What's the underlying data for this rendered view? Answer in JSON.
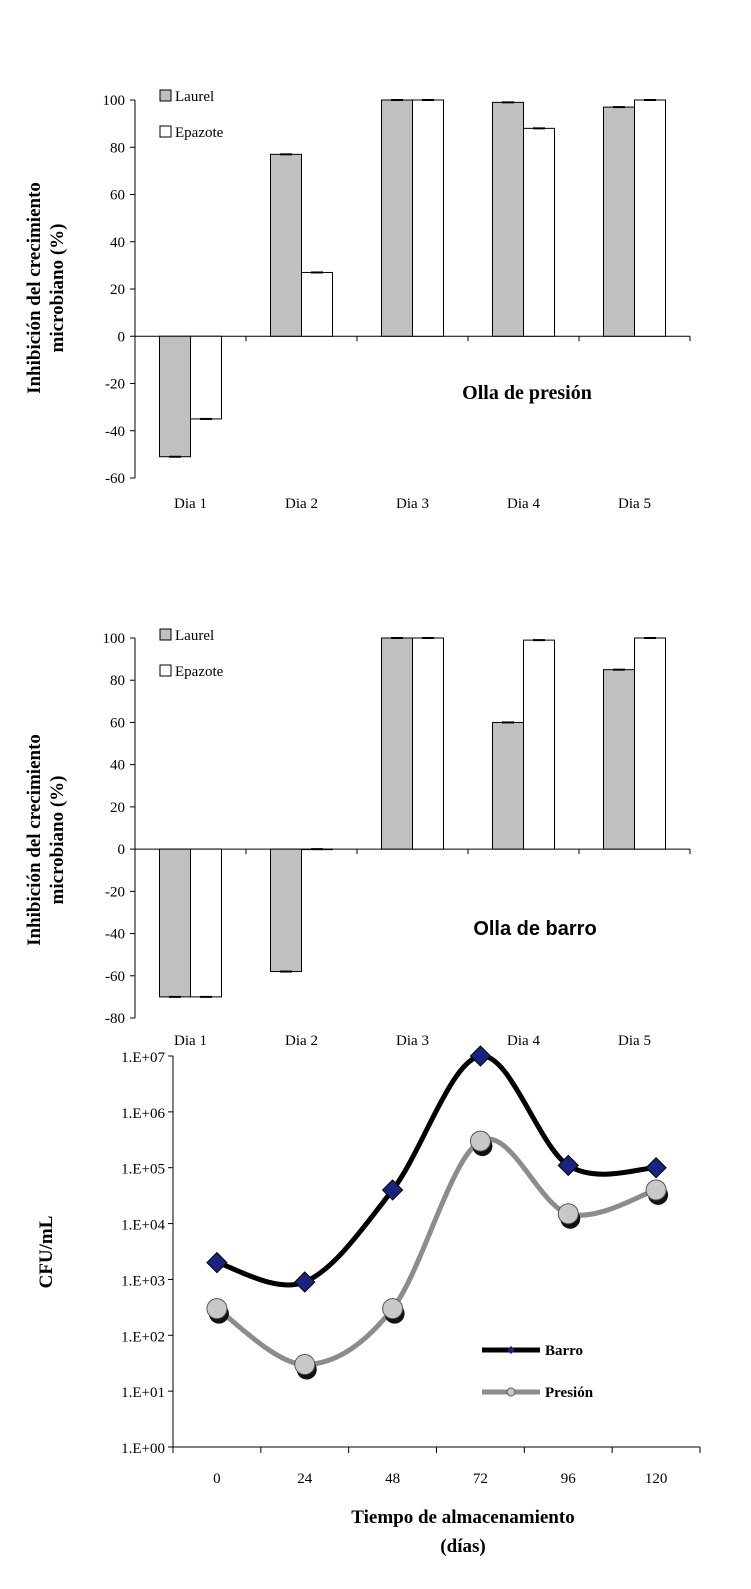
{
  "chart_data": [
    {
      "type": "bar",
      "title": "",
      "annotation": "Olla de presión",
      "ylabel": "Inhibición del crecimiento microbiano (%)",
      "ylabel_lines": [
        "Inhibición del crecimiento",
        "microbiano (%)"
      ],
      "xlabel": "",
      "categories": [
        "Dia 1",
        "Dia 2",
        "Dia 3",
        "Dia 4",
        "Dia 5"
      ],
      "ylim": [
        -60,
        100
      ],
      "yticks": [
        -60,
        -40,
        -20,
        0,
        20,
        40,
        60,
        80,
        100
      ],
      "legend_position": "top-left",
      "series": [
        {
          "name": "Laurel",
          "color": "#c0c0c0",
          "values": [
            -51,
            77,
            100,
            99,
            97
          ]
        },
        {
          "name": "Epazote",
          "color": "#ffffff",
          "values": [
            -35,
            27,
            100,
            88,
            100
          ]
        }
      ]
    },
    {
      "type": "bar",
      "title": "",
      "annotation": "Olla de barro",
      "ylabel": "Inhibición del crecimiento microbiano (%)",
      "ylabel_lines": [
        "Inhibición del crecimiento",
        "microbiano (%)"
      ],
      "xlabel": "",
      "categories": [
        "Dia 1",
        "Dia 2",
        "Dia 3",
        "Dia 4",
        "Dia 5"
      ],
      "ylim": [
        -80,
        100
      ],
      "yticks": [
        -80,
        -60,
        -40,
        -20,
        0,
        20,
        40,
        60,
        80,
        100
      ],
      "legend_position": "top-left",
      "series": [
        {
          "name": "Laurel",
          "color": "#c0c0c0",
          "values": [
            -70,
            -58,
            100,
            60,
            85
          ]
        },
        {
          "name": "Epazote",
          "color": "#ffffff",
          "values": [
            -70,
            0,
            100,
            99,
            100
          ]
        }
      ]
    },
    {
      "type": "line",
      "title": "",
      "ylabel": "CFU/mL",
      "xlabel": "Tiempo de almacenamiento",
      "xlabel_line2": "(días)",
      "x": [
        0,
        24,
        48,
        72,
        96,
        120
      ],
      "xticks": [
        "0",
        "24",
        "48",
        "72",
        "96",
        "120"
      ],
      "y_scale": "log",
      "ylim": [
        1,
        10000000
      ],
      "yticks": [
        "1.E+00",
        "1.E+01",
        "1.E+02",
        "1.E+03",
        "1.E+04",
        "1.E+05",
        "1.E+06",
        "1.E+07"
      ],
      "legend_position": "center-right",
      "series": [
        {
          "name": "Barro",
          "color": "#000000",
          "marker_color": "#1a237e",
          "marker": "diamond",
          "values": [
            2000,
            900,
            40000,
            10000000,
            110000,
            100000
          ]
        },
        {
          "name": "Presión",
          "color": "#8c8c8c",
          "marker_color": "#c8c8c8",
          "marker": "circle",
          "values": [
            300,
            30,
            300,
            300000,
            15000,
            40000
          ]
        }
      ]
    }
  ]
}
